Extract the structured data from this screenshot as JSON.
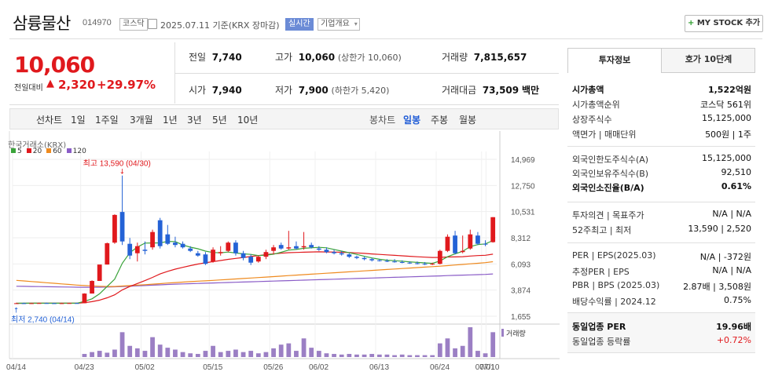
{
  "header": {
    "company_name": "삼륭물산",
    "code": "014970",
    "market": "코스닥",
    "date_text": "2025.07.11 기준(KRX 장마감)",
    "realtime": "실시간",
    "company_info": "기업개요",
    "mystock": "MY STOCK 추가"
  },
  "price": {
    "current": "10,060",
    "prev_label": "전일대비",
    "change": "2,320",
    "change_pct": "+29.97%",
    "prev_close_label": "전일",
    "prev_close": "7,740",
    "high_label": "고가",
    "high": "10,060",
    "upper_limit": "(상한가 10,060)",
    "volume_label": "거래량",
    "volume": "7,815,657",
    "open_label": "시가",
    "open": "7,940",
    "low_label": "저가",
    "low": "7,900",
    "lower_limit": "(하한가 5,420)",
    "amount_label": "거래대금",
    "amount": "73,509",
    "amount_unit": "백만"
  },
  "chart_toolbar": {
    "line_label": "선차트",
    "periods": [
      "1일",
      "1주일",
      "3개월",
      "1년",
      "3년",
      "5년",
      "10년"
    ],
    "candle_label": "봉차트",
    "candle_types": [
      "일봉",
      "주봉",
      "월봉"
    ]
  },
  "chart_data": {
    "type": "candlestick",
    "source": "한국거래소(KRX)",
    "ma_legend": [
      {
        "name": "5",
        "color": "#3aa33a"
      },
      {
        "name": "20",
        "color": "#e0191d"
      },
      {
        "name": "60",
        "color": "#ef8a1e"
      },
      {
        "name": "120",
        "color": "#8a5cc7"
      }
    ],
    "y_ticks": [
      "14,969",
      "12,750",
      "10,531",
      "8,312",
      "6,093",
      "3,874",
      "1,655"
    ],
    "y_tick_values": [
      14969,
      12750,
      10531,
      8312,
      6093,
      3874,
      1655
    ],
    "ylim": [
      1655,
      14969
    ],
    "x_ticks": [
      "04/14",
      "04/23",
      "05/02",
      "05/15",
      "05/26",
      "06/02",
      "06/13",
      "06/24",
      "07/01",
      "07/10"
    ],
    "max_label": "최고 13,590 (04/30)",
    "min_label": "최저 2,740 (04/14)",
    "volume_label": "거래량",
    "candles": [
      {
        "o": 2740,
        "h": 2800,
        "l": 2740,
        "c": 2760
      },
      {
        "o": 2760,
        "h": 2800,
        "l": 2740,
        "c": 2750
      },
      {
        "o": 2750,
        "h": 2780,
        "l": 2740,
        "c": 2760
      },
      {
        "o": 2760,
        "h": 2800,
        "l": 2740,
        "c": 2770
      },
      {
        "o": 2770,
        "h": 2800,
        "l": 2750,
        "c": 2760
      },
      {
        "o": 2760,
        "h": 2790,
        "l": 2740,
        "c": 2750
      },
      {
        "o": 2750,
        "h": 2790,
        "l": 2740,
        "c": 2760
      },
      {
        "o": 2760,
        "h": 2790,
        "l": 2740,
        "c": 2770
      },
      {
        "o": 2770,
        "h": 2800,
        "l": 2750,
        "c": 2760
      },
      {
        "o": 2760,
        "h": 3600,
        "l": 2760,
        "c": 3580
      },
      {
        "o": 3580,
        "h": 4700,
        "l": 3580,
        "c": 4650
      },
      {
        "o": 4650,
        "h": 6000,
        "l": 4650,
        "c": 6040
      },
      {
        "o": 6040,
        "h": 7900,
        "l": 6040,
        "c": 7850
      },
      {
        "o": 7900,
        "h": 10300,
        "l": 7800,
        "c": 10250
      },
      {
        "o": 10500,
        "h": 13590,
        "l": 7700,
        "c": 8000
      },
      {
        "o": 7800,
        "h": 8300,
        "l": 6500,
        "c": 6800
      },
      {
        "o": 7000,
        "h": 7900,
        "l": 6300,
        "c": 7600
      },
      {
        "o": 7300,
        "h": 8000,
        "l": 6900,
        "c": 7200
      },
      {
        "o": 7500,
        "h": 9000,
        "l": 7300,
        "c": 8800
      },
      {
        "o": 9800,
        "h": 10000,
        "l": 7400,
        "c": 7600
      },
      {
        "o": 8600,
        "h": 9400,
        "l": 7700,
        "c": 7800
      },
      {
        "o": 7900,
        "h": 8400,
        "l": 7500,
        "c": 7700
      },
      {
        "o": 7800,
        "h": 8000,
        "l": 7400,
        "c": 7500
      },
      {
        "o": 7400,
        "h": 7600,
        "l": 7100,
        "c": 7200
      },
      {
        "o": 7000,
        "h": 7200,
        "l": 6700,
        "c": 6800
      },
      {
        "o": 6900,
        "h": 7100,
        "l": 6000,
        "c": 6100
      },
      {
        "o": 6300,
        "h": 7500,
        "l": 6200,
        "c": 7300
      },
      {
        "o": 7000,
        "h": 7600,
        "l": 6800,
        "c": 7100
      },
      {
        "o": 7200,
        "h": 8000,
        "l": 7100,
        "c": 7900
      },
      {
        "o": 7900,
        "h": 8100,
        "l": 6800,
        "c": 7000
      },
      {
        "o": 7000,
        "h": 7200,
        "l": 6400,
        "c": 6600
      },
      {
        "o": 6700,
        "h": 6900,
        "l": 6000,
        "c": 6200
      },
      {
        "o": 6300,
        "h": 6800,
        "l": 6200,
        "c": 6700
      },
      {
        "o": 6700,
        "h": 7300,
        "l": 6500,
        "c": 7100
      },
      {
        "o": 7200,
        "h": 7700,
        "l": 6900,
        "c": 7500
      },
      {
        "o": 7700,
        "h": 7900,
        "l": 7300,
        "c": 7400
      },
      {
        "o": 7400,
        "h": 8900,
        "l": 7300,
        "c": 7500
      },
      {
        "o": 7600,
        "h": 8000,
        "l": 7300,
        "c": 7400
      },
      {
        "o": 7500,
        "h": 8800,
        "l": 7300,
        "c": 7600
      },
      {
        "o": 7700,
        "h": 7900,
        "l": 7400,
        "c": 7500
      },
      {
        "o": 7400,
        "h": 7600,
        "l": 7200,
        "c": 7300
      },
      {
        "o": 7300,
        "h": 7500,
        "l": 7000,
        "c": 7100
      },
      {
        "o": 7100,
        "h": 7300,
        "l": 6900,
        "c": 7000
      },
      {
        "o": 7000,
        "h": 7200,
        "l": 6800,
        "c": 6900
      },
      {
        "o": 6900,
        "h": 7000,
        "l": 6600,
        "c": 6700
      },
      {
        "o": 6700,
        "h": 6800,
        "l": 6500,
        "c": 6600
      },
      {
        "o": 6600,
        "h": 6700,
        "l": 6400,
        "c": 6500
      },
      {
        "o": 6500,
        "h": 6600,
        "l": 6300,
        "c": 6400
      },
      {
        "o": 6400,
        "h": 6500,
        "l": 6300,
        "c": 6350
      },
      {
        "o": 6350,
        "h": 6500,
        "l": 6250,
        "c": 6300
      },
      {
        "o": 6300,
        "h": 6500,
        "l": 6200,
        "c": 6250
      },
      {
        "o": 6250,
        "h": 6400,
        "l": 6150,
        "c": 6200
      },
      {
        "o": 6200,
        "h": 6300,
        "l": 6100,
        "c": 6150
      },
      {
        "o": 6150,
        "h": 6300,
        "l": 6050,
        "c": 6100
      },
      {
        "o": 6100,
        "h": 6250,
        "l": 6000,
        "c": 6050
      },
      {
        "o": 6050,
        "h": 6200,
        "l": 6000,
        "c": 6100
      },
      {
        "o": 6100,
        "h": 7300,
        "l": 6050,
        "c": 7200
      },
      {
        "o": 7200,
        "h": 8600,
        "l": 7100,
        "c": 8400
      },
      {
        "o": 8500,
        "h": 8900,
        "l": 6900,
        "c": 7000
      },
      {
        "o": 7100,
        "h": 8500,
        "l": 7000,
        "c": 7200
      },
      {
        "o": 7400,
        "h": 9000,
        "l": 7300,
        "c": 8600
      },
      {
        "o": 8500,
        "h": 8800,
        "l": 7700,
        "c": 7800
      },
      {
        "o": 7800,
        "h": 8100,
        "l": 7600,
        "c": 7740
      },
      {
        "o": 7940,
        "h": 10060,
        "l": 7900,
        "c": 10060
      }
    ],
    "volumes": [
      0,
      0,
      0,
      0,
      0,
      0,
      0,
      0,
      0,
      5,
      8,
      10,
      7,
      12,
      40,
      18,
      14,
      10,
      32,
      20,
      15,
      12,
      8,
      6,
      5,
      10,
      18,
      8,
      10,
      12,
      8,
      10,
      6,
      8,
      14,
      20,
      22,
      10,
      30,
      15,
      10,
      6,
      5,
      4,
      5,
      4,
      4,
      5,
      4,
      4,
      3,
      4,
      3,
      3,
      3,
      3,
      22,
      30,
      14,
      18,
      48,
      10,
      6,
      40
    ],
    "ma5": [
      2760,
      2760,
      2760,
      2760,
      2760,
      2760,
      2760,
      2760,
      2760,
      2910,
      3130,
      3560,
      4180,
      4800,
      6150,
      7050,
      7520,
      7860,
      7870,
      7880,
      8000,
      7990,
      7700,
      7510,
      7380,
      7180,
      7060,
      7040,
      7100,
      7020,
      6950,
      6900,
      6800,
      6840,
      6920,
      7080,
      7270,
      7320,
      7420,
      7460,
      7500,
      7460,
      7320,
      7180,
      7040,
      6900,
      6740,
      6600,
      6490,
      6410,
      6370,
      6320,
      6270,
      6220,
      6180,
      6140,
      6340,
      6700,
      6950,
      7170,
      7560,
      7730,
      7790,
      8080
    ],
    "ma20": [
      2750,
      2755,
      2760,
      2760,
      2760,
      2760,
      2760,
      2760,
      2760,
      2800,
      2890,
      3020,
      3220,
      3470,
      3890,
      4180,
      4430,
      4680,
      4950,
      5240,
      5460,
      5650,
      5800,
      5950,
      6080,
      6190,
      6290,
      6380,
      6480,
      6560,
      6640,
      6720,
      6800,
      6880,
      6950,
      7000,
      7050,
      7070,
      7090,
      7110,
      7120,
      7110,
      7100,
      7080,
      7060,
      7030,
      6990,
      6940,
      6900,
      6860,
      6820,
      6780,
      6740,
      6700,
      6670,
      6640,
      6650,
      6680,
      6690,
      6710,
      6760,
      6800,
      6830,
      6920
    ],
    "ma60": [
      4700,
      4650,
      4600,
      4550,
      4500,
      4450,
      4400,
      4350,
      4300,
      4260,
      4230,
      4200,
      4180,
      4180,
      4220,
      4250,
      4290,
      4330,
      4380,
      4420,
      4470,
      4510,
      4550,
      4590,
      4630,
      4660,
      4700,
      4740,
      4780,
      4820,
      4860,
      4900,
      4940,
      4980,
      5020,
      5060,
      5100,
      5140,
      5180,
      5220,
      5260,
      5300,
      5340,
      5380,
      5420,
      5460,
      5500,
      5540,
      5580,
      5620,
      5660,
      5700,
      5740,
      5780,
      5820,
      5860,
      5900,
      5950,
      6000,
      6050,
      6100,
      6150,
      6200,
      6280
    ],
    "ma120": [
      4200,
      4190,
      4180,
      4170,
      4160,
      4150,
      4140,
      4130,
      4120,
      4110,
      4110,
      4120,
      4130,
      4150,
      4180,
      4200,
      4230,
      4260,
      4290,
      4320,
      4350,
      4380,
      4400,
      4420,
      4440,
      4460,
      4480,
      4500,
      4520,
      4540,
      4560,
      4580,
      4600,
      4620,
      4640,
      4660,
      4680,
      4700,
      4720,
      4740,
      4760,
      4780,
      4800,
      4820,
      4840,
      4860,
      4880,
      4900,
      4920,
      4940,
      4960,
      4980,
      5000,
      5020,
      5040,
      5060,
      5080,
      5100,
      5120,
      5140,
      5160,
      5180,
      5200,
      5240
    ]
  },
  "right_panel": {
    "tabs": [
      "투자정보",
      "호가 10단계"
    ],
    "rows1": [
      {
        "label": "시가총액",
        "value": "1,522억원",
        "bold": true
      },
      {
        "label": "시가총액순위",
        "value": "코스닥 561위"
      },
      {
        "label": "상장주식수",
        "value": "15,125,000"
      },
      {
        "label": "액면가 | 매매단위",
        "value": "500원 | 1주"
      }
    ],
    "rows2": [
      {
        "label": "외국인한도주식수(A)",
        "value": "15,125,000"
      },
      {
        "label": "외국인보유주식수(B)",
        "value": "92,510"
      },
      {
        "label": "외국인소진율(B/A)",
        "value": "0.61%",
        "bold": true
      }
    ],
    "rows3": [
      {
        "label": "투자의견 | 목표주가",
        "value": "N/A | N/A"
      },
      {
        "label": "52주최고 | 최저",
        "value": "13,590 | 2,520"
      }
    ],
    "rows4": [
      {
        "label": "PER | EPS(2025.03)",
        "value": "N/A | -372원"
      },
      {
        "label": "추정PER | EPS",
        "value": "N/A | N/A"
      },
      {
        "label": "PBR | BPS (2025.03)",
        "value": "2.87배 | 3,508원"
      },
      {
        "label": "배당수익률 | 2024.12",
        "value": "0.75%"
      }
    ],
    "rows5": [
      {
        "label": "동일업종 PER",
        "value": "19.96배",
        "bold": true
      },
      {
        "label": "동일업종 등락률",
        "value": "+0.72%",
        "red": true
      }
    ]
  }
}
